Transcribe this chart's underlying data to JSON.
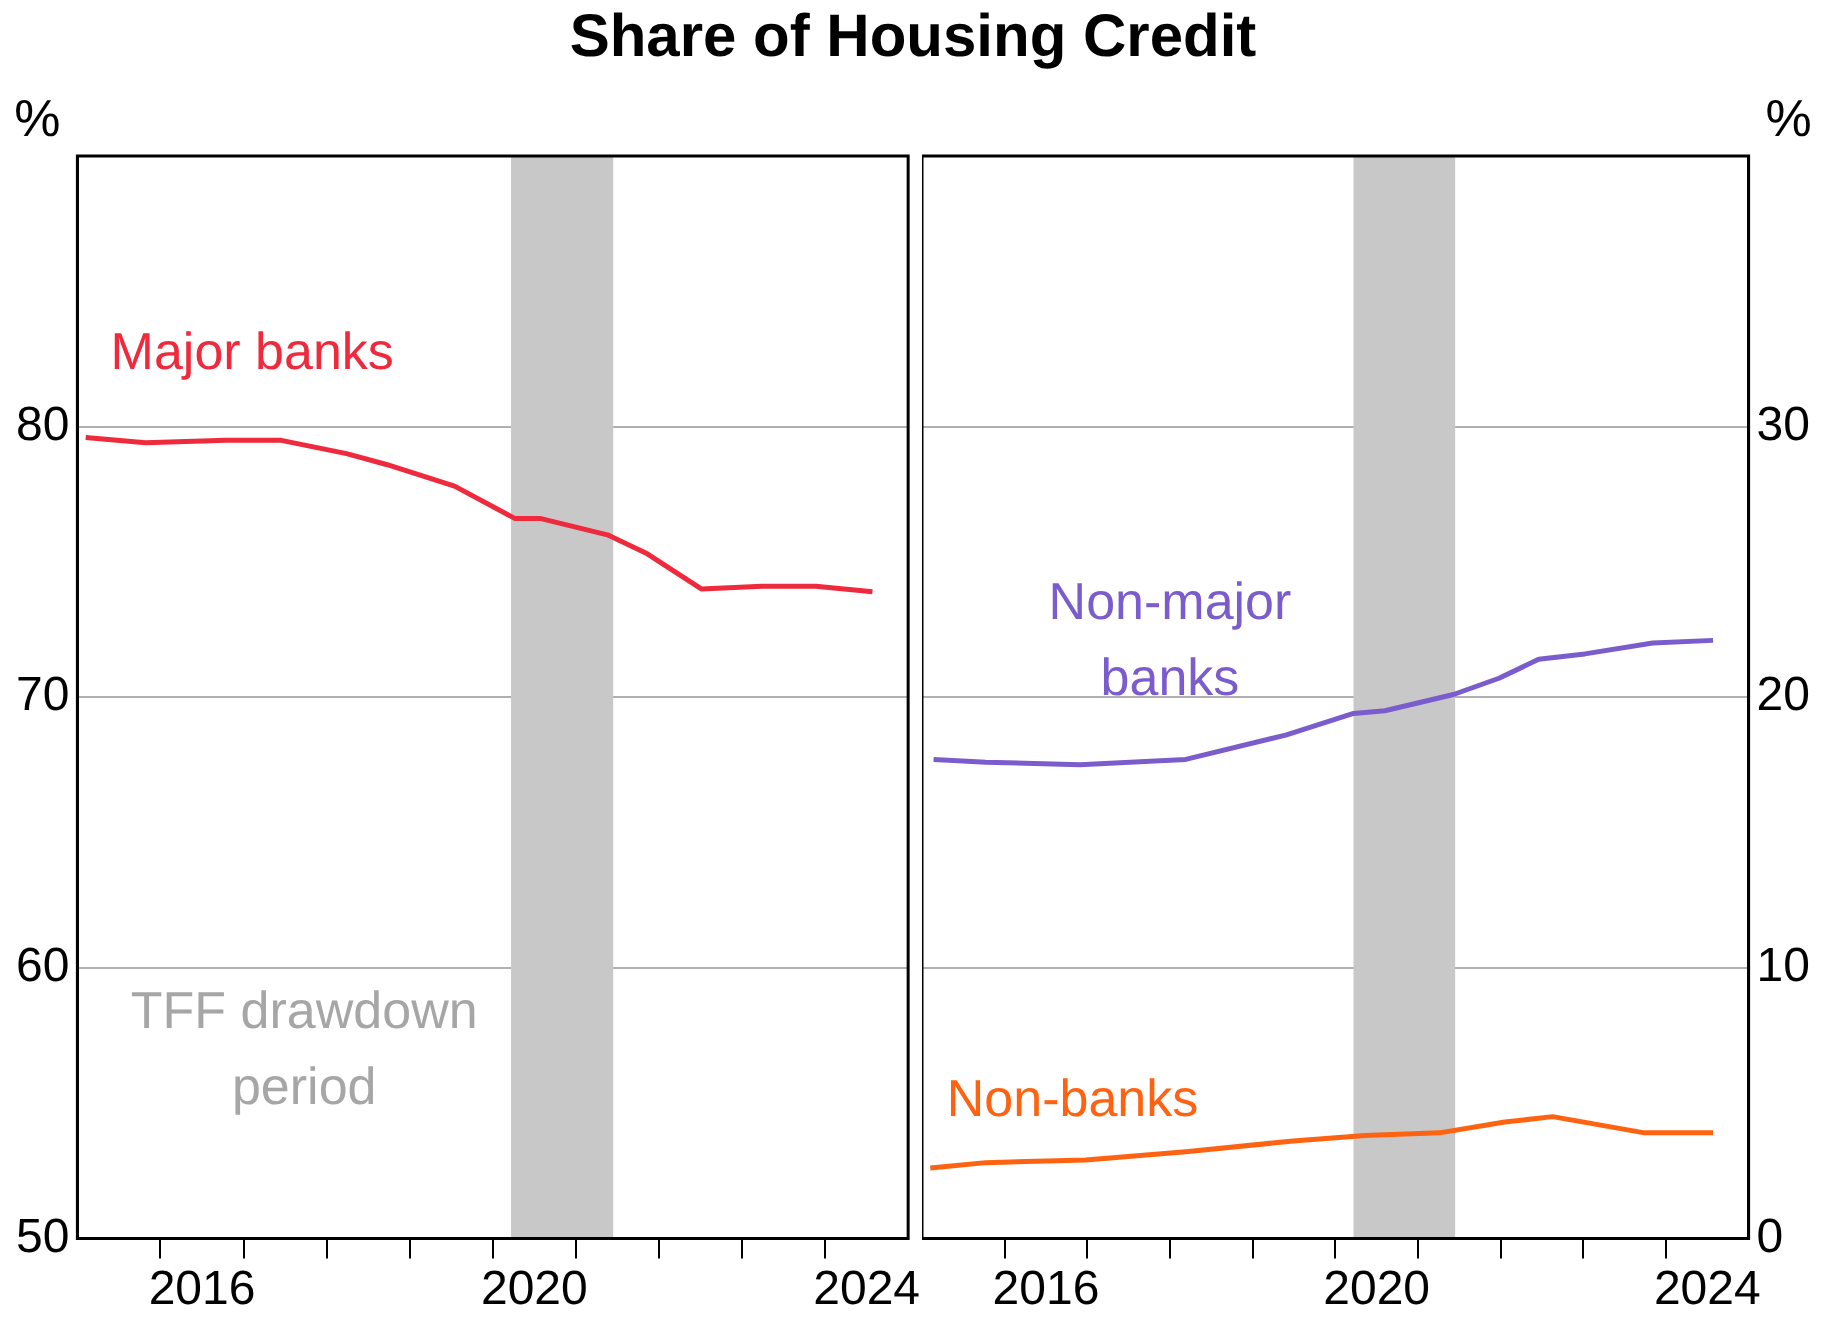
{
  "chart_data": [
    {
      "type": "line",
      "title": "Share of Housing Credit",
      "ylabel": "%",
      "xlim": [
        2015,
        2025
      ],
      "xticks": [
        {
          "value": 2016,
          "label": null
        },
        {
          "value": 2016.5,
          "label": "2016"
        },
        {
          "value": 2017,
          "label": null
        },
        {
          "value": 2018,
          "label": null
        },
        {
          "value": 2019,
          "label": null
        },
        {
          "value": 2020,
          "label": null
        },
        {
          "value": 2020.5,
          "label": "2020"
        },
        {
          "value": 2021,
          "label": null
        },
        {
          "value": 2022,
          "label": null
        },
        {
          "value": 2023,
          "label": null
        },
        {
          "value": 2024,
          "label": null
        },
        {
          "value": 2024.5,
          "label": "2024"
        }
      ],
      "ylim": [
        50,
        90
      ],
      "yticks": [
        50,
        60,
        70,
        80
      ],
      "grid": "y",
      "legend": false,
      "bands": [
        {
          "axis": "x",
          "from": 2020.22,
          "to": 2021.45,
          "color": "#c8c8c8",
          "label": "TFF drawdown period"
        }
      ],
      "series": [
        {
          "name": "Major banks",
          "color": "#ee2a3c",
          "x": [
            2015.1,
            2015.82,
            2016.79,
            2017.44,
            2018.24,
            2018.72,
            2019.54,
            2020.27,
            2020.58,
            2021.38,
            2021.86,
            2022.51,
            2023.24,
            2023.89,
            2024.57
          ],
          "values": [
            79.6,
            79.4,
            79.5,
            79.5,
            79.0,
            78.6,
            77.8,
            76.6,
            76.6,
            76.0,
            75.3,
            74.0,
            74.1,
            74.1,
            73.9
          ]
        }
      ]
    },
    {
      "type": "line",
      "y2label": "%",
      "xlim": [
        2015,
        2025
      ],
      "xticks": [
        {
          "value": 2016,
          "label": null
        },
        {
          "value": 2016.5,
          "label": "2016"
        },
        {
          "value": 2017,
          "label": null
        },
        {
          "value": 2018,
          "label": null
        },
        {
          "value": 2019,
          "label": null
        },
        {
          "value": 2020,
          "label": null
        },
        {
          "value": 2020.5,
          "label": "2020"
        },
        {
          "value": 2021,
          "label": null
        },
        {
          "value": 2022,
          "label": null
        },
        {
          "value": 2023,
          "label": null
        },
        {
          "value": 2024,
          "label": null
        },
        {
          "value": 2024.5,
          "label": "2024"
        }
      ],
      "y2lim": [
        0,
        40
      ],
      "y2ticks": [
        0,
        10,
        20,
        30
      ],
      "grid": "y",
      "legend": false,
      "bands": [
        {
          "axis": "x",
          "from": 2020.22,
          "to": 2021.45,
          "color": "#c8c8c8"
        }
      ],
      "series": [
        {
          "name": "Non-major banks",
          "color": "#7b5ccc",
          "axis": "y2",
          "x": [
            2015.14,
            2015.77,
            2016.91,
            2018.19,
            2019.4,
            2020.22,
            2020.6,
            2021.43,
            2021.98,
            2022.46,
            2023.02,
            2023.84,
            2024.57
          ],
          "values": [
            17.7,
            17.6,
            17.5,
            17.7,
            18.6,
            19.4,
            19.5,
            20.1,
            20.7,
            21.4,
            21.6,
            22.0,
            22.1
          ]
        },
        {
          "name": "Non-banks",
          "color": "#ff6311",
          "axis": "y2",
          "x": [
            2015.1,
            2015.77,
            2016.98,
            2018.19,
            2019.49,
            2020.36,
            2021.26,
            2022.05,
            2022.63,
            2023.74,
            2024.57
          ],
          "values": [
            2.6,
            2.8,
            2.9,
            3.2,
            3.6,
            3.8,
            3.9,
            4.3,
            4.5,
            3.9,
            3.9
          ]
        }
      ]
    }
  ]
}
